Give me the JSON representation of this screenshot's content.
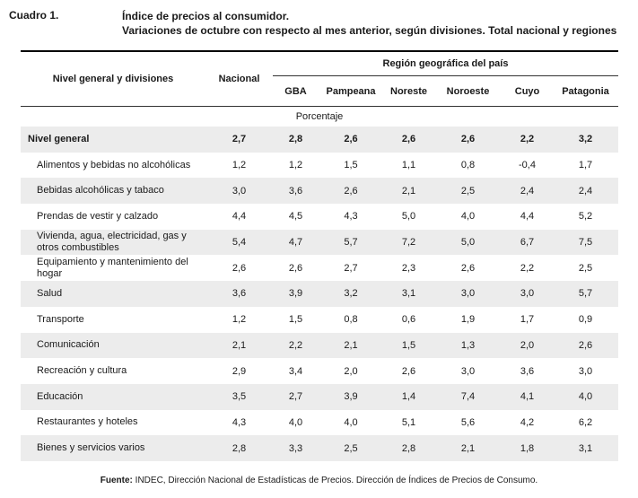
{
  "header": {
    "label": "Cuadro 1.",
    "title": "Índice de precios al consumidor.",
    "subtitle": "Variaciones de octubre con respecto al mes anterior, según divisiones. Total nacional y regiones"
  },
  "table": {
    "col_division": "Nivel general y divisiones",
    "col_nacional": "Nacional",
    "group_header": "Región geográfica del país",
    "regions": [
      "GBA",
      "Pampeana",
      "Noreste",
      "Noroeste",
      "Cuyo",
      "Patagonia"
    ],
    "unit_row": "Porcentaje",
    "rows": [
      {
        "label": "Nivel general",
        "values": [
          "2,7",
          "2,8",
          "2,6",
          "2,6",
          "2,6",
          "2,2",
          "3,2"
        ]
      },
      {
        "label": "Alimentos y bebidas no alcohólicas",
        "values": [
          "1,2",
          "1,2",
          "1,5",
          "1,1",
          "0,8",
          "-0,4",
          "1,7"
        ]
      },
      {
        "label": "Bebidas alcohólicas y tabaco",
        "values": [
          "3,0",
          "3,6",
          "2,6",
          "2,1",
          "2,5",
          "2,4",
          "2,4"
        ]
      },
      {
        "label": "Prendas de vestir y calzado",
        "values": [
          "4,4",
          "4,5",
          "4,3",
          "5,0",
          "4,0",
          "4,4",
          "5,2"
        ]
      },
      {
        "label": "Vivienda, agua, electricidad, gas y otros combustibles",
        "values": [
          "5,4",
          "4,7",
          "5,7",
          "7,2",
          "5,0",
          "6,7",
          "7,5"
        ]
      },
      {
        "label": "Equipamiento y mantenimiento del hogar",
        "values": [
          "2,6",
          "2,6",
          "2,7",
          "2,3",
          "2,6",
          "2,2",
          "2,5"
        ]
      },
      {
        "label": "Salud",
        "values": [
          "3,6",
          "3,9",
          "3,2",
          "3,1",
          "3,0",
          "3,0",
          "5,7"
        ]
      },
      {
        "label": "Transporte",
        "values": [
          "1,2",
          "1,5",
          "0,8",
          "0,6",
          "1,9",
          "1,7",
          "0,9"
        ]
      },
      {
        "label": "Comunicación",
        "values": [
          "2,1",
          "2,2",
          "2,1",
          "1,5",
          "1,3",
          "2,0",
          "2,6"
        ]
      },
      {
        "label": "Recreación y cultura",
        "values": [
          "2,9",
          "3,4",
          "2,0",
          "2,6",
          "3,0",
          "3,6",
          "3,0"
        ]
      },
      {
        "label": "Educación",
        "values": [
          "3,5",
          "2,7",
          "3,9",
          "1,4",
          "7,4",
          "4,1",
          "4,0"
        ]
      },
      {
        "label": "Restaurantes y hoteles",
        "values": [
          "4,3",
          "4,0",
          "4,0",
          "5,1",
          "5,6",
          "4,2",
          "6,2"
        ]
      },
      {
        "label": "Bienes y servicios varios",
        "values": [
          "2,8",
          "3,3",
          "2,5",
          "2,8",
          "2,1",
          "1,8",
          "3,1"
        ]
      }
    ]
  },
  "footer": {
    "label": "Fuente:",
    "text": "INDEC, Dirección Nacional de Estadísticas de Precios. Dirección de Índices de Precios de Consumo."
  }
}
